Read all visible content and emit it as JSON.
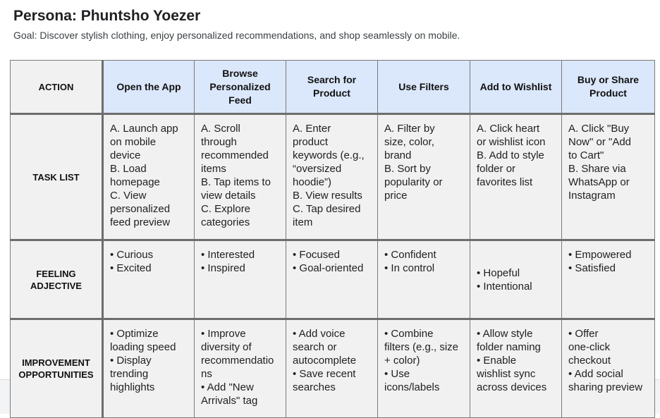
{
  "header": {
    "title": "Persona: Phuntsho Yoezer",
    "goal": "Goal: Discover stylish clothing, enjoy personalized recommendations, and shop seamlessly on mobile."
  },
  "table": {
    "corner": "ACTION",
    "columns": [
      [
        "Open the App"
      ],
      [
        "Browse",
        "Personalized",
        "Feed"
      ],
      [
        "Search for",
        "Product"
      ],
      [
        "Use Filters"
      ],
      [
        "Add to Wishlist"
      ],
      [
        "Buy or Share",
        "Product"
      ]
    ],
    "rows": [
      {
        "label": [
          "TASK LIST"
        ],
        "cells": [
          [
            "A. Launch app",
            "on mobile",
            "device",
            "B. Load",
            "homepage",
            "C. View",
            "personalized",
            "feed preview"
          ],
          [
            "A. Scroll",
            "through",
            "recommended",
            "items",
            "B. Tap items to",
            "view details",
            "C. Explore",
            "categories"
          ],
          [
            "A. Enter",
            "product",
            "keywords (e.g.,",
            "“oversized",
            "hoodie”)",
            "B. View results",
            "C. Tap desired",
            "item"
          ],
          [
            "A. Filter by",
            "size, color,",
            "brand",
            "B. Sort by",
            "popularity or",
            "price"
          ],
          [
            "A. Click heart",
            "or wishlist icon",
            "B. Add to style",
            "folder or",
            "favorites list"
          ],
          [
            "A. Click \"Buy",
            "Now\" or \"Add",
            "to Cart\"",
            "B. Share via",
            "WhatsApp or",
            "Instagram"
          ]
        ]
      },
      {
        "label": [
          "FEELING",
          "ADJECTIVE"
        ],
        "cells": [
          [
            "• Curious",
            "• Excited"
          ],
          [
            "• Interested",
            "• Inspired"
          ],
          [
            "• Focused",
            "• Goal-oriented"
          ],
          [
            "• Confident",
            "• In control"
          ],
          [
            "• Hopeful",
            "• Intentional"
          ],
          [
            "• Empowered",
            "• Satisfied"
          ]
        ]
      },
      {
        "label": [
          "IMPROVEMENT",
          "OPPORTUNITIES"
        ],
        "cells": [
          [
            "• Optimize",
            "loading speed",
            "• Display",
            "trending",
            "highlights"
          ],
          [
            "• Improve",
            "diversity of",
            "recommendatio",
            "ns",
            "• Add \"New",
            "Arrivals\" tag"
          ],
          [
            "• Add voice",
            "search or",
            "autocomplete",
            "• Save recent",
            "searches"
          ],
          [
            "• Combine",
            "filters (e.g., size",
            "+ color)",
            "• Use",
            "icons/labels"
          ],
          [
            "• Allow style",
            "folder naming",
            "• Enable",
            "wishlist sync",
            "across devices"
          ],
          [
            "• Offer",
            "one-click",
            "checkout",
            "• Add social",
            "sharing preview"
          ]
        ]
      }
    ]
  },
  "colors": {
    "header_fill": "#dbe7fb",
    "cell_fill": "#f1f1f1",
    "grid_line": "#7a7a7a"
  }
}
